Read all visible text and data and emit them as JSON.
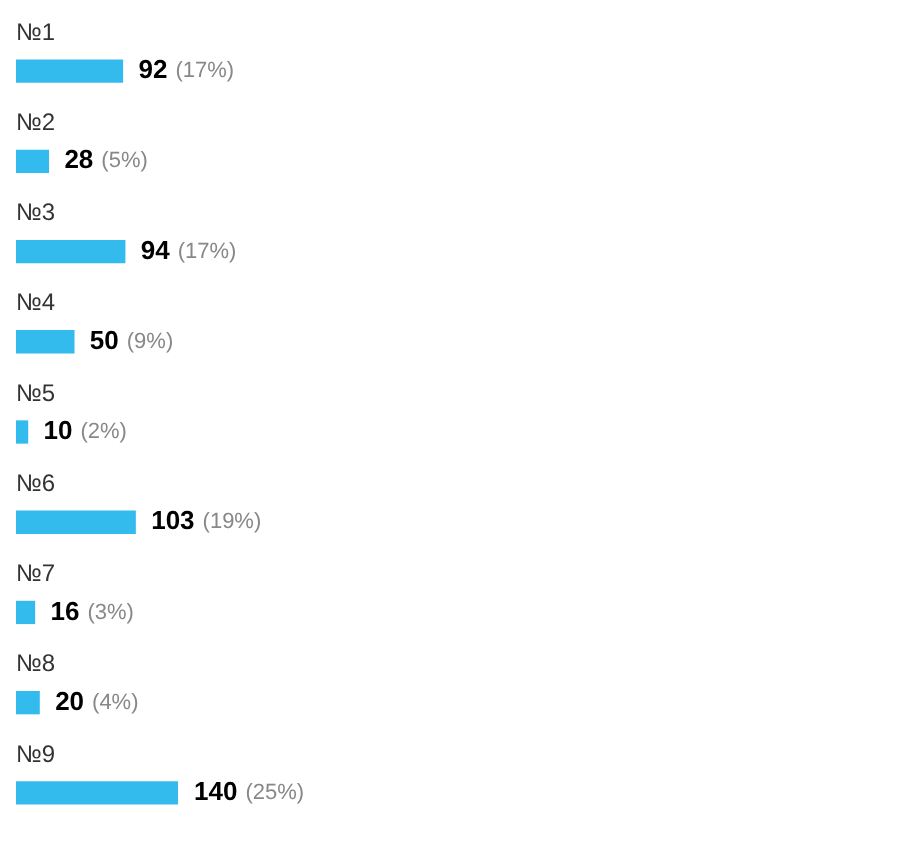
{
  "chart_data": {
    "type": "bar",
    "orientation": "horizontal",
    "categories": [
      "№1",
      "№2",
      "№3",
      "№4",
      "№5",
      "№6",
      "№7",
      "№8",
      "№9"
    ],
    "series": [
      {
        "color": "#33bbee",
        "values": [
          92,
          28,
          94,
          50,
          10,
          103,
          16,
          20,
          140
        ]
      }
    ],
    "data_labels": true,
    "value_labels": [
      "(17%)",
      "(5%)",
      "(17%)",
      "(9%)",
      "(2%)",
      "(19%)",
      "(3%)",
      "(4%)",
      "(25%)"
    ],
    "legend": false
  }
}
